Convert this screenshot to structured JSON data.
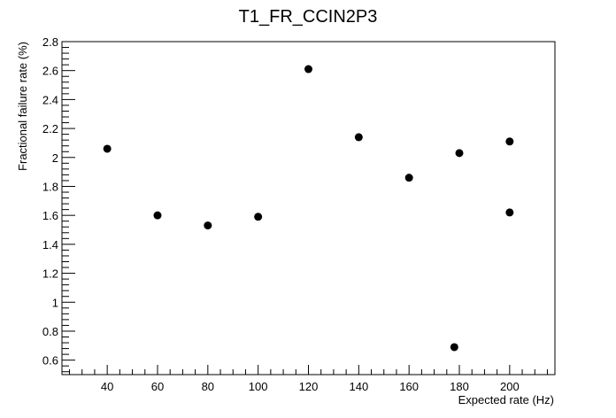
{
  "chart_data": {
    "type": "scatter",
    "title": "T1_FR_CCIN2P3",
    "xlabel": "Expected rate (Hz)",
    "ylabel": "Fractional failure rate (%)",
    "xlim": [
      22,
      218
    ],
    "ylim": [
      0.5,
      2.8
    ],
    "x_ticks": [
      40,
      60,
      80,
      100,
      120,
      140,
      160,
      180,
      200
    ],
    "x_tick_labels": [
      "40",
      "60",
      "80",
      "100",
      "120",
      "140",
      "160",
      "180",
      "200"
    ],
    "y_ticks": [
      0.6,
      0.8,
      1.0,
      1.2,
      1.4,
      1.6,
      1.8,
      2.0,
      2.2,
      2.4,
      2.6,
      2.8
    ],
    "y_tick_labels": [
      "0.6",
      "0.8",
      "1",
      "1.2",
      "1.4",
      "1.6",
      "1.8",
      "2",
      "2.2",
      "2.4",
      "2.6",
      "2.8"
    ],
    "grid": false,
    "points": [
      {
        "x": 40,
        "y": 2.06
      },
      {
        "x": 60,
        "y": 1.6
      },
      {
        "x": 80,
        "y": 1.53
      },
      {
        "x": 100,
        "y": 1.59
      },
      {
        "x": 120,
        "y": 2.61
      },
      {
        "x": 140,
        "y": 2.14
      },
      {
        "x": 160,
        "y": 1.86
      },
      {
        "x": 178,
        "y": 0.69
      },
      {
        "x": 180,
        "y": 2.03
      },
      {
        "x": 200,
        "y": 2.11
      },
      {
        "x": 200,
        "y": 1.62
      }
    ],
    "marker_color": "#000000"
  }
}
